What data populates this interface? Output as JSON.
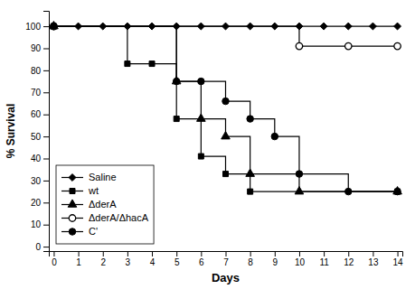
{
  "chart_data": {
    "type": "line",
    "title": "",
    "x_label": "Days",
    "y_label": "% Survival",
    "xlim": [
      -0.2,
      14.2
    ],
    "ylim": [
      -2,
      107
    ],
    "xticks": [
      0,
      1,
      2,
      3,
      4,
      5,
      6,
      7,
      8,
      9,
      10,
      11,
      12,
      13,
      14
    ],
    "yticks": [
      0,
      10,
      20,
      30,
      40,
      50,
      60,
      70,
      80,
      90,
      100
    ],
    "grid": false,
    "legend": "lower left",
    "color": "#000000",
    "series": [
      {
        "name": "Saline",
        "marker": "diamond",
        "x": [
          0,
          14
        ],
        "values": [
          100,
          100
        ],
        "points_x": [
          0,
          1,
          2,
          3,
          4,
          5,
          6,
          7,
          8,
          9,
          10,
          11,
          12,
          13,
          14
        ],
        "points_values": [
          100,
          100,
          100,
          100,
          100,
          100,
          100,
          100,
          100,
          100,
          100,
          100,
          100,
          100,
          100
        ]
      },
      {
        "name": "wt",
        "marker": "square",
        "x": [
          0,
          3,
          3,
          4,
          4,
          5,
          5,
          6,
          6,
          7,
          7,
          8,
          8,
          14
        ],
        "values": [
          100,
          100,
          83,
          83,
          83,
          83,
          58,
          58,
          41,
          41,
          33,
          33,
          25,
          25
        ],
        "points_x": [
          0,
          3,
          4,
          5,
          6,
          7,
          8,
          14
        ],
        "points_values": [
          100,
          83,
          83,
          58,
          41,
          33,
          25,
          25
        ]
      },
      {
        "name": "ΔderA",
        "marker": "triangle",
        "x": [
          0,
          5,
          5,
          6,
          6,
          7,
          7,
          8,
          8,
          10,
          10,
          14
        ],
        "values": [
          100,
          100,
          75,
          75,
          58,
          58,
          50,
          50,
          33,
          33,
          25,
          25
        ],
        "points_x": [
          0,
          5,
          6,
          7,
          8,
          10,
          14
        ],
        "points_values": [
          100,
          75,
          58,
          50,
          33,
          25,
          25
        ]
      },
      {
        "name": "ΔderA/ΔhacA",
        "marker": "circle-open",
        "x": [
          0,
          10,
          10,
          12,
          12,
          14
        ],
        "values": [
          100,
          100,
          91,
          91,
          91,
          91
        ],
        "points_x": [
          0,
          10,
          12,
          14
        ],
        "points_values": [
          100,
          91,
          91,
          91
        ]
      },
      {
        "name": "C'",
        "marker": "circle",
        "x": [
          0,
          5,
          5,
          6,
          6,
          7,
          7,
          8,
          8,
          9,
          9,
          10,
          10,
          12,
          12,
          14
        ],
        "values": [
          100,
          100,
          75,
          75,
          75,
          75,
          66,
          66,
          58,
          58,
          50,
          50,
          33,
          33,
          25,
          25
        ],
        "points_x": [
          0,
          5,
          6,
          7,
          8,
          9,
          10,
          12,
          14
        ],
        "points_values": [
          100,
          75,
          75,
          66,
          58,
          50,
          33,
          25,
          25
        ]
      }
    ]
  }
}
